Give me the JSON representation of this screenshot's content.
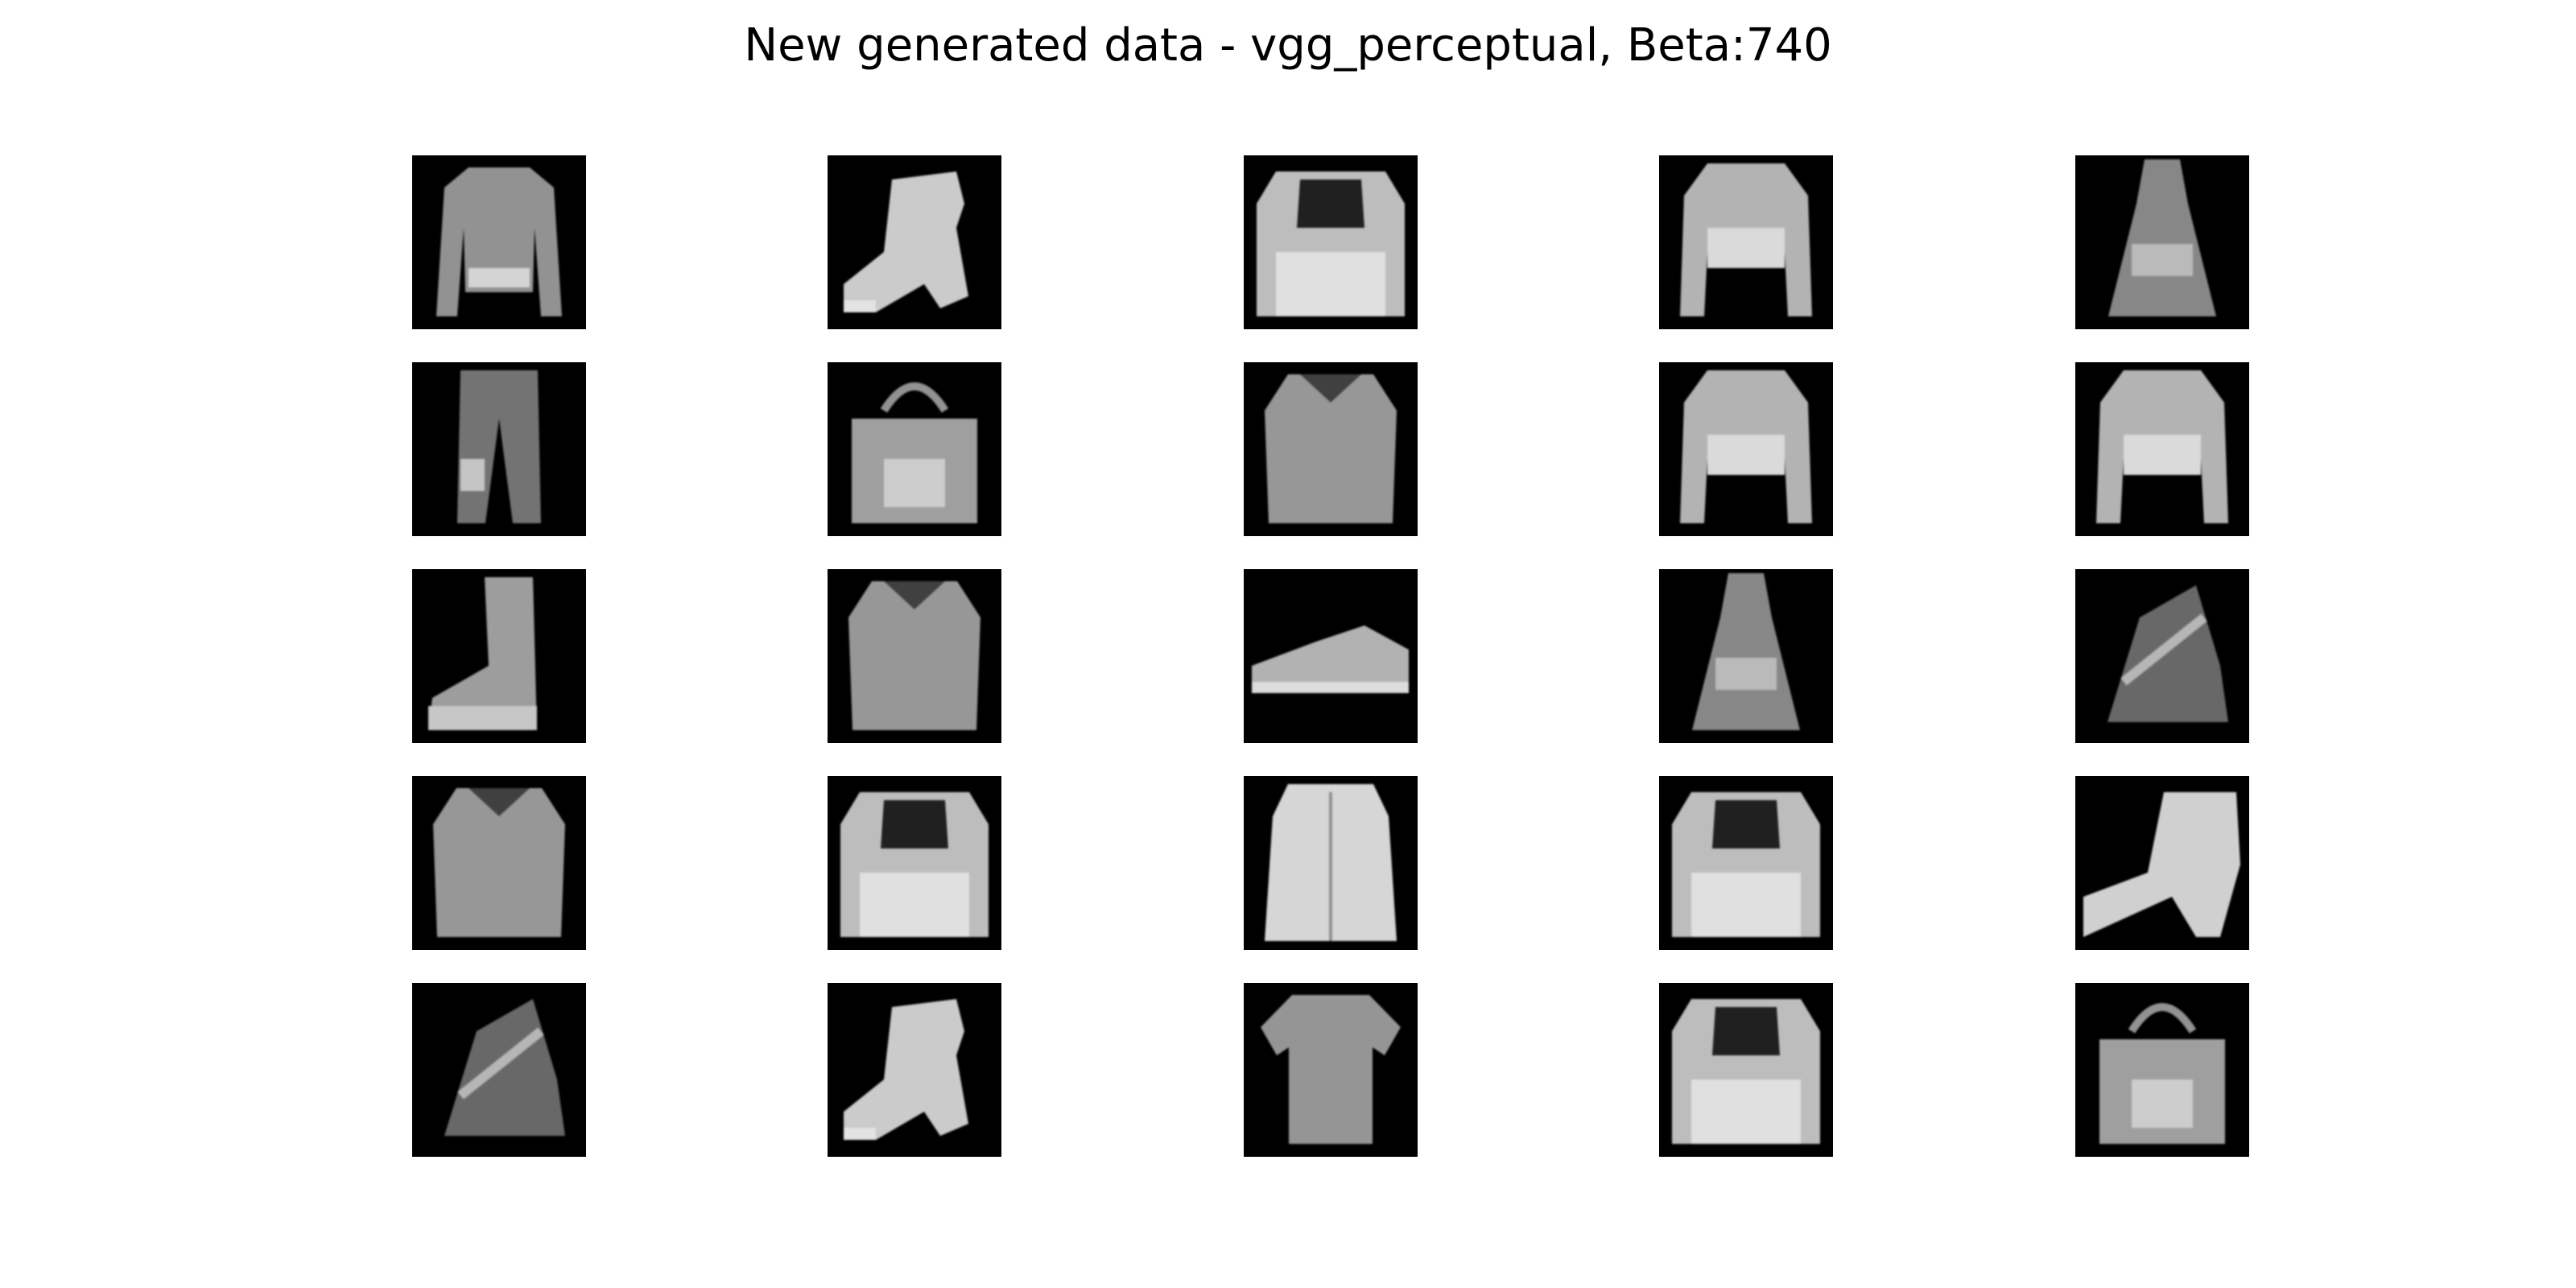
{
  "figure": {
    "title": "New generated data - vgg_perceptual, Beta:740",
    "rows": 5,
    "cols": 5,
    "background_color": "#000000",
    "foreground_color": "#ffffff",
    "samples": [
      {
        "row": 0,
        "col": 0,
        "item": "jacket"
      },
      {
        "row": 0,
        "col": 1,
        "item": "ankle-boot"
      },
      {
        "row": 0,
        "col": 2,
        "item": "top"
      },
      {
        "row": 0,
        "col": 3,
        "item": "pullover"
      },
      {
        "row": 0,
        "col": 4,
        "item": "dress"
      },
      {
        "row": 1,
        "col": 0,
        "item": "trousers"
      },
      {
        "row": 1,
        "col": 1,
        "item": "bag"
      },
      {
        "row": 1,
        "col": 2,
        "item": "shirt"
      },
      {
        "row": 1,
        "col": 3,
        "item": "pullover"
      },
      {
        "row": 1,
        "col": 4,
        "item": "pullover"
      },
      {
        "row": 2,
        "col": 0,
        "item": "boot"
      },
      {
        "row": 2,
        "col": 1,
        "item": "shirt"
      },
      {
        "row": 2,
        "col": 2,
        "item": "sneaker"
      },
      {
        "row": 2,
        "col": 3,
        "item": "dress"
      },
      {
        "row": 2,
        "col": 4,
        "item": "sandal"
      },
      {
        "row": 3,
        "col": 0,
        "item": "shirt"
      },
      {
        "row": 3,
        "col": 1,
        "item": "top"
      },
      {
        "row": 3,
        "col": 2,
        "item": "coat"
      },
      {
        "row": 3,
        "col": 3,
        "item": "top"
      },
      {
        "row": 3,
        "col": 4,
        "item": "high-heel-boot"
      },
      {
        "row": 4,
        "col": 0,
        "item": "sandal"
      },
      {
        "row": 4,
        "col": 1,
        "item": "ankle-boot"
      },
      {
        "row": 4,
        "col": 2,
        "item": "t-shirt"
      },
      {
        "row": 4,
        "col": 3,
        "item": "top"
      },
      {
        "row": 4,
        "col": 4,
        "item": "bag"
      }
    ]
  }
}
